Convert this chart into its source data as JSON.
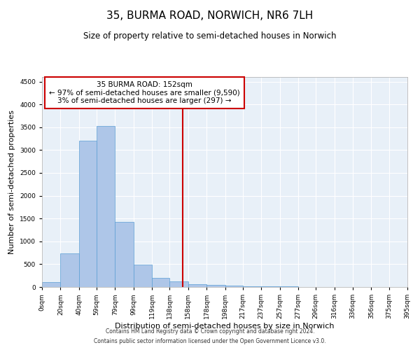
{
  "title": "35, BURMA ROAD, NORWICH, NR6 7LH",
  "subtitle": "Size of property relative to semi-detached houses in Norwich",
  "xlabel": "Distribution of semi-detached houses by size in Norwich",
  "ylabel": "Number of semi-detached properties",
  "footnote1": "Contains HM Land Registry data © Crown copyright and database right 2024.",
  "footnote2": "Contains public sector information licensed under the Open Government Licence v3.0.",
  "annotation_title": "35 BURMA ROAD: 152sqm",
  "annotation_line1": "← 97% of semi-detached houses are smaller (9,590)",
  "annotation_line2": "3% of semi-detached houses are larger (297) →",
  "bar_color": "#aec6e8",
  "bar_edge_color": "#5a9fd4",
  "vline_color": "#cc0000",
  "vline_x": 152,
  "bin_edges": [
    0,
    20,
    40,
    59,
    79,
    99,
    119,
    138,
    158,
    178,
    198,
    217,
    237,
    257,
    277,
    296,
    316,
    336,
    356,
    375,
    395
  ],
  "bar_values": [
    100,
    730,
    3200,
    3530,
    1420,
    490,
    200,
    120,
    60,
    40,
    30,
    20,
    15,
    10,
    5,
    5,
    3,
    3,
    3,
    3
  ],
  "xlim": [
    0,
    395
  ],
  "ylim": [
    0,
    4600
  ],
  "yticks": [
    0,
    500,
    1000,
    1500,
    2000,
    2500,
    3000,
    3500,
    4000,
    4500
  ],
  "xtick_labels": [
    "0sqm",
    "20sqm",
    "40sqm",
    "59sqm",
    "79sqm",
    "99sqm",
    "119sqm",
    "138sqm",
    "158sqm",
    "178sqm",
    "198sqm",
    "217sqm",
    "237sqm",
    "257sqm",
    "277sqm",
    "296sqm",
    "316sqm",
    "336sqm",
    "356sqm",
    "375sqm",
    "395sqm"
  ],
  "bg_color": "#e8f0f8",
  "grid_color": "#ffffff",
  "title_fontsize": 11,
  "subtitle_fontsize": 8.5,
  "axis_label_fontsize": 8,
  "tick_fontsize": 6.5,
  "annotation_fontsize": 7.5,
  "footnote_fontsize": 5.5,
  "annotation_box_color": "#ffffff",
  "annotation_box_edge": "#cc0000"
}
